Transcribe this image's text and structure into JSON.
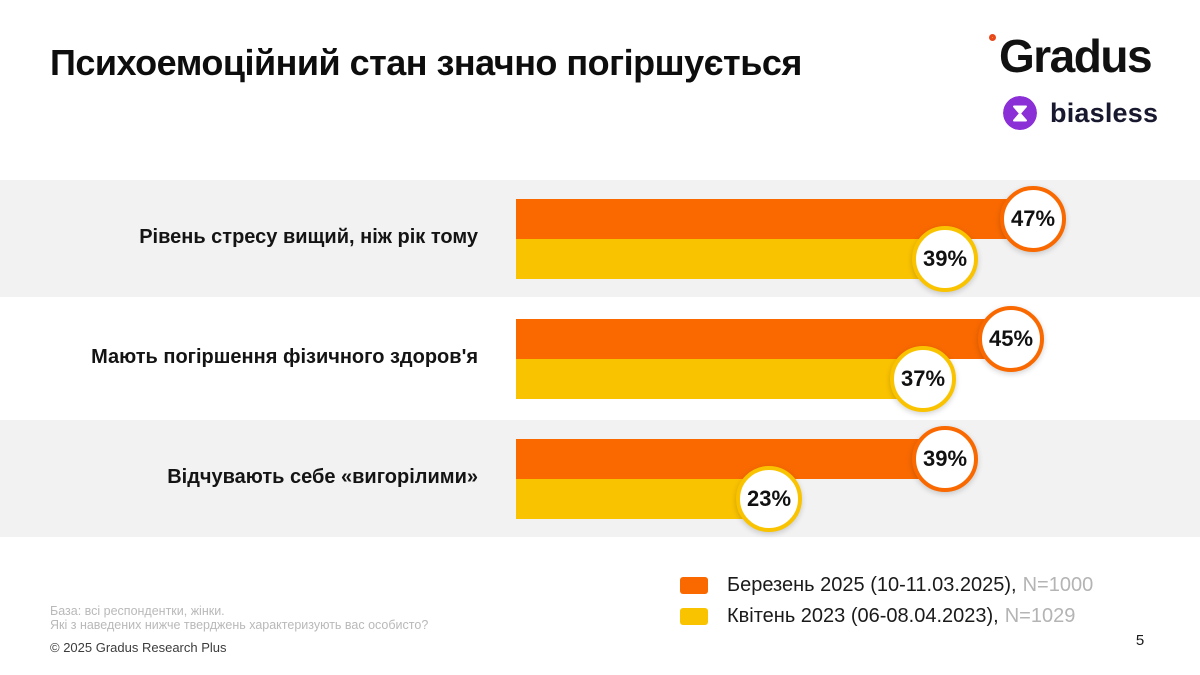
{
  "header": {
    "title": "Психоемоційний стан значно погіршується",
    "gradus_wordmark": "Gradus",
    "biasless_wordmark": "biasless"
  },
  "colors": {
    "march_orange": "#F96900",
    "april_yellow": "#FAC300",
    "row_band_gray": "#F2F2F2",
    "biasless_purple": "#8B2FD6",
    "gradus_dot_red": "#E8481C"
  },
  "chart_data": {
    "type": "bar",
    "orientation": "horizontal",
    "title": "Психоемоційний стан значно погіршується",
    "categories": [
      "Рівень стресу вищий, ніж рік тому",
      "Мають погіршення фізичного здоров'я",
      "Відчувають себе «вигорілими»"
    ],
    "series": [
      {
        "name": "Березень 2025 (10-11.03.2025)",
        "sample": "N=1000",
        "color": "#F96900",
        "values": [
          47,
          45,
          39
        ]
      },
      {
        "name": "Квітень 2023 (06-08.04.2023)",
        "sample": "N=1029",
        "color": "#FAC300",
        "values": [
          39,
          37,
          23
        ]
      }
    ],
    "value_suffix": "%",
    "xlim": [
      0,
      100
    ],
    "grid": false,
    "legend_position": "bottom-right",
    "row_shading": [
      true,
      false,
      true
    ]
  },
  "legend": {
    "items": [
      {
        "label": "Березень 2025 (10-11.03.2025),",
        "sample": "N=1000",
        "color": "#F96900"
      },
      {
        "label": "Квітень 2023 (06-08.04.2023),",
        "sample": "N=1029",
        "color": "#FAC300"
      }
    ]
  },
  "footer": {
    "base_line1": "База: всі респондентки, жінки.",
    "base_line2": "Які з наведених нижче тверджень характеризують вас особисто?",
    "copyright": "© 2025 Gradus Research Plus",
    "page_number": "5"
  }
}
